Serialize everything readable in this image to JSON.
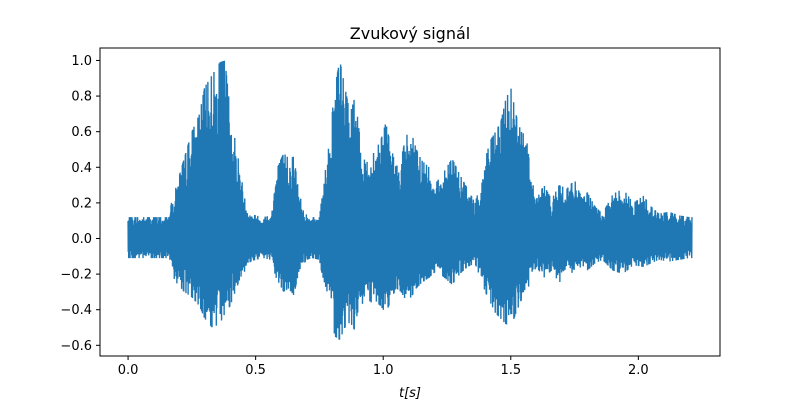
{
  "chart_data": {
    "type": "line",
    "title": "Zvukový signál",
    "xlabel": "t[s]",
    "ylabel": "",
    "xlim": [
      -0.11,
      2.32
    ],
    "ylim": [
      -0.66,
      1.07
    ],
    "xticks": [
      0.0,
      0.5,
      1.0,
      1.5,
      2.0
    ],
    "xtick_labels": [
      "0.0",
      "0.5",
      "1.0",
      "1.5",
      "2.0"
    ],
    "yticks": [
      -0.6,
      -0.4,
      -0.2,
      0.0,
      0.2,
      0.4,
      0.6,
      0.8,
      1.0
    ],
    "ytick_labels": [
      "−0.6",
      "−0.4",
      "−0.2",
      "0.0",
      "0.2",
      "0.4",
      "0.6",
      "0.8",
      "1.0"
    ],
    "grid": false,
    "legend": "none",
    "line_color": "#1f77b4",
    "series": [
      {
        "envelope_time": [
          0.0,
          0.16,
          0.17,
          0.19,
          0.22,
          0.25,
          0.28,
          0.3,
          0.33,
          0.36,
          0.38,
          0.4,
          0.42,
          0.44,
          0.46,
          0.48,
          0.5,
          0.53,
          0.56,
          0.58,
          0.61,
          0.63,
          0.65,
          0.67,
          0.7,
          0.72,
          0.75,
          0.76,
          0.77,
          0.79,
          0.81,
          0.83,
          0.85,
          0.87,
          0.89,
          0.91,
          0.93,
          0.95,
          0.97,
          0.99,
          1.01,
          1.03,
          1.05,
          1.07,
          1.09,
          1.11,
          1.13,
          1.15,
          1.18,
          1.21,
          1.24,
          1.27,
          1.3,
          1.33,
          1.36,
          1.38,
          1.4,
          1.42,
          1.44,
          1.46,
          1.48,
          1.5,
          1.52,
          1.54,
          1.56,
          1.58,
          1.6,
          1.63,
          1.66,
          1.69,
          1.72,
          1.75,
          1.78,
          1.8,
          1.83,
          1.86,
          1.9,
          1.94,
          1.98,
          2.02,
          2.05,
          2.08,
          2.12,
          2.16,
          2.2,
          2.21
        ],
        "envelope_max": [
          0.12,
          0.12,
          0.2,
          0.3,
          0.45,
          0.6,
          0.7,
          0.85,
          0.92,
          0.99,
          1.0,
          0.72,
          0.55,
          0.38,
          0.2,
          0.14,
          0.13,
          0.12,
          0.13,
          0.38,
          0.48,
          0.45,
          0.46,
          0.25,
          0.13,
          0.12,
          0.12,
          0.3,
          0.35,
          0.55,
          0.85,
          1.0,
          0.85,
          0.7,
          0.8,
          0.55,
          0.42,
          0.45,
          0.5,
          0.55,
          0.65,
          0.52,
          0.4,
          0.45,
          0.58,
          0.6,
          0.5,
          0.44,
          0.4,
          0.32,
          0.38,
          0.45,
          0.36,
          0.28,
          0.2,
          0.3,
          0.45,
          0.55,
          0.6,
          0.65,
          0.78,
          0.85,
          0.7,
          0.6,
          0.58,
          0.35,
          0.22,
          0.3,
          0.22,
          0.3,
          0.28,
          0.33,
          0.22,
          0.26,
          0.18,
          0.14,
          0.25,
          0.28,
          0.2,
          0.24,
          0.18,
          0.14,
          0.15,
          0.13,
          0.12,
          0.12
        ],
        "envelope_min": [
          -0.11,
          -0.11,
          -0.2,
          -0.25,
          -0.3,
          -0.33,
          -0.38,
          -0.45,
          -0.5,
          -0.48,
          -0.42,
          -0.38,
          -0.3,
          -0.22,
          -0.18,
          -0.13,
          -0.12,
          -0.11,
          -0.12,
          -0.22,
          -0.3,
          -0.28,
          -0.32,
          -0.18,
          -0.12,
          -0.11,
          -0.12,
          -0.2,
          -0.25,
          -0.35,
          -0.55,
          -0.57,
          -0.5,
          -0.47,
          -0.52,
          -0.42,
          -0.3,
          -0.36,
          -0.35,
          -0.38,
          -0.42,
          -0.35,
          -0.28,
          -0.3,
          -0.35,
          -0.33,
          -0.28,
          -0.25,
          -0.22,
          -0.18,
          -0.22,
          -0.26,
          -0.2,
          -0.16,
          -0.14,
          -0.22,
          -0.3,
          -0.36,
          -0.42,
          -0.45,
          -0.48,
          -0.5,
          -0.42,
          -0.35,
          -0.32,
          -0.22,
          -0.16,
          -0.22,
          -0.18,
          -0.25,
          -0.18,
          -0.2,
          -0.15,
          -0.18,
          -0.14,
          -0.12,
          -0.18,
          -0.2,
          -0.15,
          -0.16,
          -0.14,
          -0.12,
          -0.13,
          -0.12,
          -0.11,
          -0.11
        ]
      }
    ]
  }
}
